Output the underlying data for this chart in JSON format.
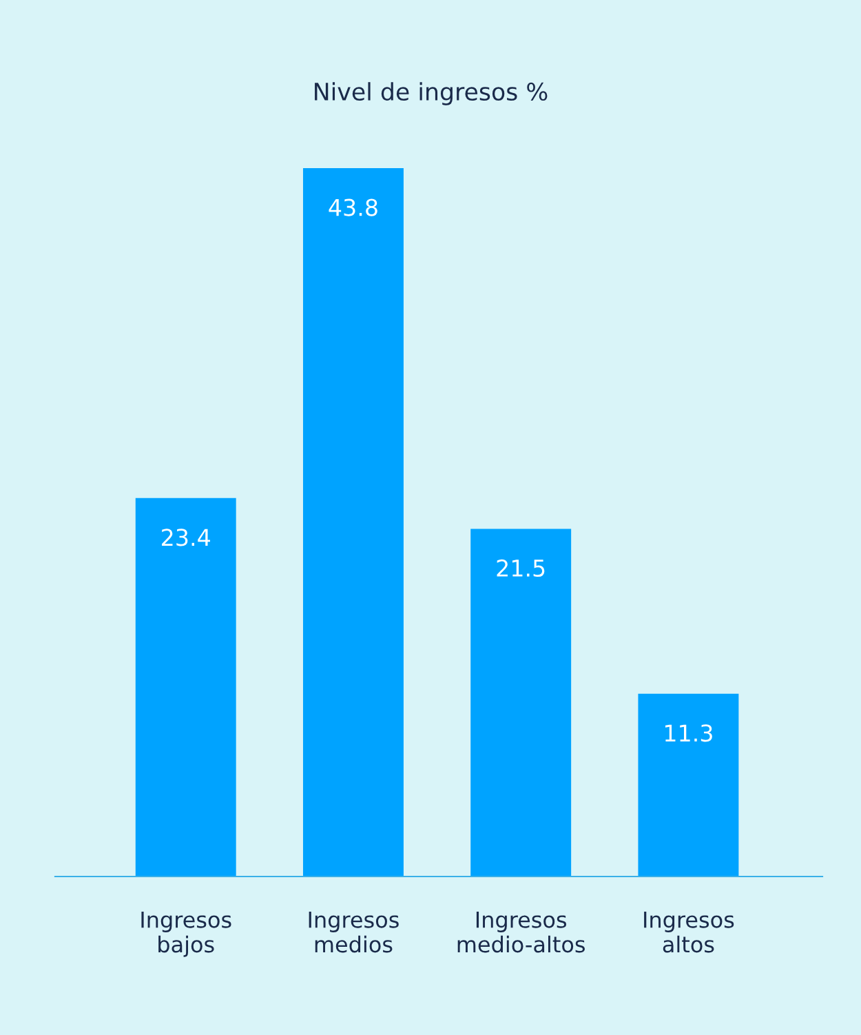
{
  "chart_data": {
    "type": "bar",
    "title": "Nivel de ingresos %",
    "categories": [
      "Ingresos\nbajos",
      "Ingresos\nmedios",
      "Ingresos\nmedio-altos",
      "Ingresos\naltos"
    ],
    "values": [
      23.4,
      43.8,
      21.5,
      11.3
    ],
    "color": "#00a3ff",
    "data_labels": true,
    "grid": false,
    "legend": false
  }
}
